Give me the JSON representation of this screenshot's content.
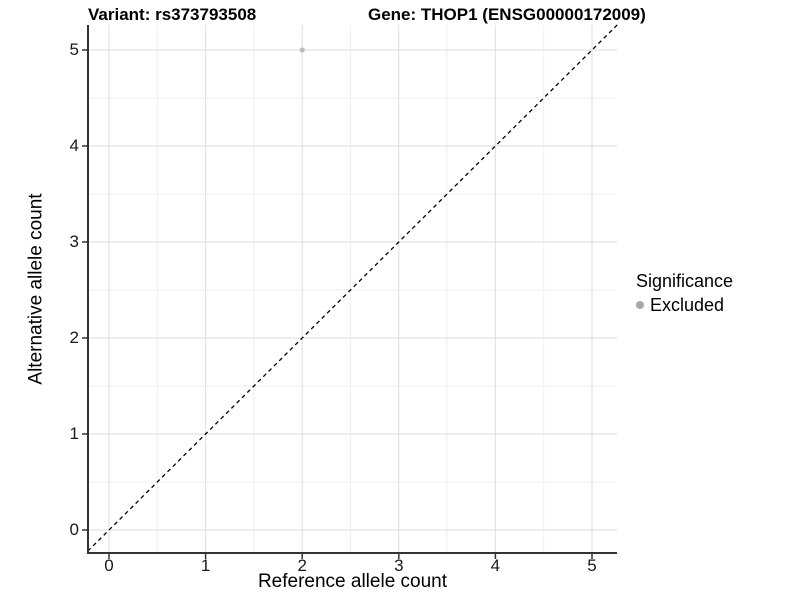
{
  "chart_data": {
    "type": "scatter",
    "title_left": "Variant: rs373793508",
    "title_right": "Gene: THOP1 (ENSG00000172009)",
    "xlabel": "Reference allele count",
    "ylabel": "Alternative allele count",
    "xlim": [
      -0.22,
      5.27
    ],
    "ylim": [
      -0.24,
      5.27
    ],
    "x_ticks": [
      "0",
      "1",
      "2",
      "3",
      "4",
      "5"
    ],
    "y_ticks": [
      "0",
      "1",
      "2",
      "3",
      "4",
      "5"
    ],
    "x_minor_ticks": [
      0.5,
      1.5,
      2.5,
      3.5,
      4.5
    ],
    "y_minor_ticks": [
      0.5,
      1.5,
      2.5,
      3.5,
      4.5
    ],
    "grid": "major-and-minor",
    "points": [
      {
        "x": 2,
        "y": 5,
        "significance": "Excluded"
      }
    ],
    "reference_line": {
      "kind": "identity y=x",
      "style": "dashed",
      "color": "#000000"
    },
    "legend": {
      "position": "right",
      "title": "Significance",
      "items": [
        {
          "label": "Excluded",
          "color": "#a8a8a8"
        }
      ]
    },
    "colors": {
      "background": "#ffffff",
      "grid_major": "#e3e3e3",
      "grid_minor": "#efefef",
      "axis_line": "#333333",
      "tick_mark": "#333333",
      "point": "#bdbdbd",
      "dashed_line": "#000000",
      "text": "#000000"
    }
  }
}
